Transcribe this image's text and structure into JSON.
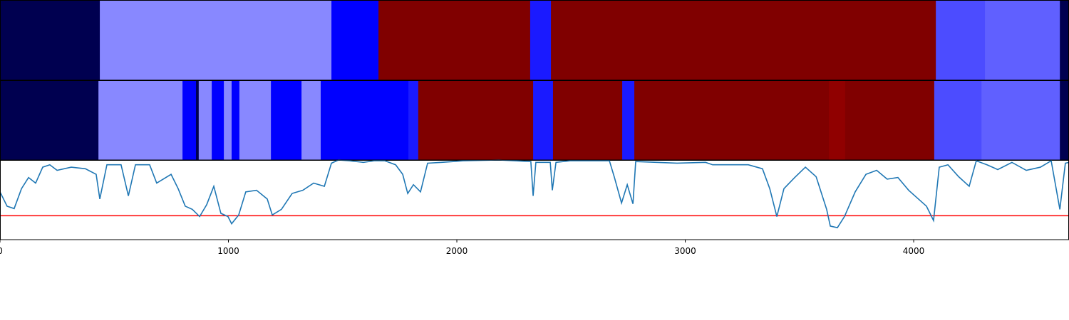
{
  "chart_data": {
    "type": "line",
    "xlim": [
      0,
      4680
    ],
    "xticks": [
      0,
      1000,
      2000,
      3000,
      4000
    ],
    "ylim": [
      0,
      1
    ],
    "segment_rows": [
      [
        {
          "start": 0,
          "end": 437,
          "color": "#000050"
        },
        {
          "start": 437,
          "end": 1451,
          "color": "#8888ff"
        },
        {
          "start": 1451,
          "end": 1657,
          "color": "#0000ff"
        },
        {
          "start": 1657,
          "end": 2321,
          "color": "#800000"
        },
        {
          "start": 2321,
          "end": 2412,
          "color": "#1a1aff"
        },
        {
          "start": 2412,
          "end": 4097,
          "color": "#800000"
        },
        {
          "start": 4097,
          "end": 4312,
          "color": "#4c4cff"
        },
        {
          "start": 4312,
          "end": 4640,
          "color": "#6060ff"
        },
        {
          "start": 4640,
          "end": 4680,
          "color": "#000050"
        }
      ],
      [
        {
          "start": 0,
          "end": 431,
          "color": "#000050"
        },
        {
          "start": 431,
          "end": 799,
          "color": "#8888ff"
        },
        {
          "start": 799,
          "end": 858,
          "color": "#0000ff"
        },
        {
          "start": 858,
          "end": 870,
          "color": "#000050"
        },
        {
          "start": 870,
          "end": 927,
          "color": "#8888ff"
        },
        {
          "start": 927,
          "end": 980,
          "color": "#0000ff"
        },
        {
          "start": 980,
          "end": 1014,
          "color": "#8888ff"
        },
        {
          "start": 1014,
          "end": 1048,
          "color": "#0000ff"
        },
        {
          "start": 1048,
          "end": 1186,
          "color": "#8888ff"
        },
        {
          "start": 1186,
          "end": 1320,
          "color": "#0000ff"
        },
        {
          "start": 1320,
          "end": 1404,
          "color": "#8888ff"
        },
        {
          "start": 1404,
          "end": 1788,
          "color": "#0000ff"
        },
        {
          "start": 1788,
          "end": 1831,
          "color": "#1a1aff"
        },
        {
          "start": 1831,
          "end": 2334,
          "color": "#800000"
        },
        {
          "start": 2334,
          "end": 2421,
          "color": "#1a1aff"
        },
        {
          "start": 2421,
          "end": 2724,
          "color": "#800000"
        },
        {
          "start": 2724,
          "end": 2777,
          "color": "#1a1aff"
        },
        {
          "start": 2777,
          "end": 3629,
          "color": "#800000"
        },
        {
          "start": 3629,
          "end": 3700,
          "color": "#900000"
        },
        {
          "start": 3700,
          "end": 4090,
          "color": "#800000"
        },
        {
          "start": 4090,
          "end": 4297,
          "color": "#4c4cff"
        },
        {
          "start": 4297,
          "end": 4640,
          "color": "#6060ff"
        },
        {
          "start": 4640,
          "end": 4680,
          "color": "#000050"
        }
      ]
    ],
    "line": {
      "color": "#1f77b4",
      "x": [
        0,
        31,
        62,
        94,
        125,
        156,
        187,
        218,
        250,
        312,
        374,
        421,
        437,
        468,
        530,
        562,
        593,
        655,
        686,
        749,
        780,
        811,
        842,
        874,
        905,
        936,
        967,
        998,
        1014,
        1045,
        1076,
        1123,
        1170,
        1192,
        1232,
        1279,
        1326,
        1373,
        1420,
        1451,
        1482,
        1529,
        1591,
        1638,
        1685,
        1732,
        1763,
        1785,
        1810,
        1841,
        1872,
        1934,
        2028,
        2184,
        2324,
        2334,
        2346,
        2409,
        2418,
        2434,
        2496,
        2668,
        2690,
        2721,
        2746,
        2771,
        2783,
        2964,
        3089,
        3120,
        3276,
        3338,
        3370,
        3401,
        3432,
        3479,
        3526,
        3573,
        3619,
        3635,
        3666,
        3697,
        3744,
        3791,
        3838,
        3884,
        3931,
        3978,
        4056,
        4087,
        4112,
        4150,
        4197,
        4243,
        4274,
        4321,
        4368,
        4430,
        4493,
        4555,
        4602,
        4640,
        4664,
        4680
      ],
      "values": [
        0.6,
        0.42,
        0.39,
        0.64,
        0.78,
        0.71,
        0.91,
        0.94,
        0.87,
        0.91,
        0.89,
        0.82,
        0.51,
        0.94,
        0.94,
        0.55,
        0.94,
        0.94,
        0.71,
        0.82,
        0.64,
        0.42,
        0.38,
        0.29,
        0.44,
        0.67,
        0.33,
        0.29,
        0.2,
        0.31,
        0.6,
        0.62,
        0.51,
        0.31,
        0.38,
        0.58,
        0.62,
        0.71,
        0.67,
        0.96,
        1.0,
        0.99,
        0.97,
        0.99,
        0.99,
        0.94,
        0.82,
        0.58,
        0.69,
        0.6,
        0.96,
        0.97,
        0.99,
        1.0,
        0.98,
        0.55,
        0.97,
        0.97,
        0.62,
        0.97,
        0.99,
        0.99,
        0.78,
        0.46,
        0.69,
        0.45,
        0.98,
        0.96,
        0.97,
        0.94,
        0.94,
        0.89,
        0.64,
        0.29,
        0.64,
        0.78,
        0.91,
        0.79,
        0.38,
        0.17,
        0.15,
        0.29,
        0.6,
        0.82,
        0.87,
        0.76,
        0.78,
        0.62,
        0.42,
        0.24,
        0.91,
        0.94,
        0.79,
        0.67,
        0.99,
        0.94,
        0.88,
        0.97,
        0.87,
        0.91,
        0.99,
        0.38,
        0.96,
        0.97
      ]
    },
    "hline": {
      "value": 0.3,
      "color": "#ff0000"
    }
  }
}
